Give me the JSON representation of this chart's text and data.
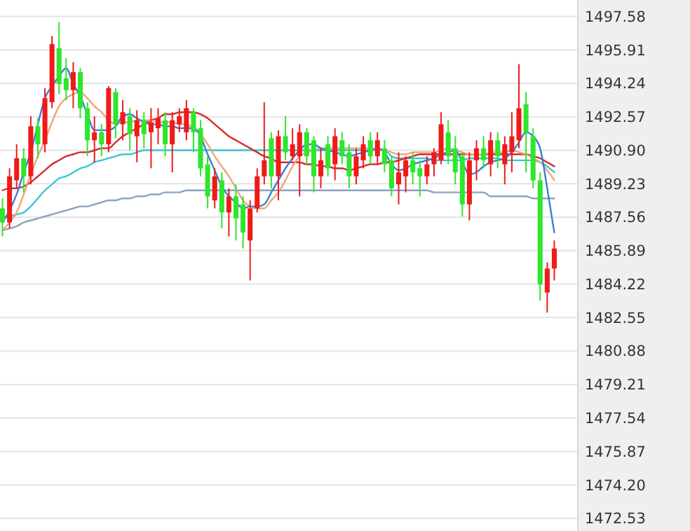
{
  "chart_data": {
    "type": "candlestick",
    "categories": [
      null,
      null,
      null,
      null,
      null,
      null,
      null,
      null,
      null,
      null,
      null,
      null,
      null,
      null,
      null,
      null,
      null,
      null,
      null,
      null,
      null,
      null,
      null,
      null,
      null,
      null,
      null,
      null,
      null,
      null,
      null,
      null,
      null,
      null,
      null,
      null,
      null,
      null,
      null,
      null,
      null,
      null,
      null,
      null,
      null,
      null,
      null,
      null,
      null,
      null,
      null,
      null,
      null,
      null,
      null,
      null,
      null,
      null,
      null,
      null,
      null,
      null,
      null,
      null,
      null,
      null,
      null,
      null,
      null,
      null,
      null,
      null,
      null,
      null,
      null,
      null,
      null,
      null,
      null
    ],
    "ohlc": [
      [
        1488.0,
        1488.5,
        1486.6,
        1487.3
      ],
      [
        1487.3,
        1490.0,
        1487.0,
        1489.6
      ],
      [
        1489.4,
        1491.2,
        1489.0,
        1490.5
      ],
      [
        1490.5,
        1491.0,
        1488.8,
        1489.6
      ],
      [
        1489.6,
        1492.6,
        1489.2,
        1492.1
      ],
      [
        1492.1,
        1492.5,
        1490.5,
        1491.2
      ],
      [
        1491.2,
        1494.0,
        1490.8,
        1493.5
      ],
      [
        1493.3,
        1496.6,
        1493.0,
        1496.2
      ],
      [
        1496.0,
        1497.3,
        1493.7,
        1494.2
      ],
      [
        1494.5,
        1495.5,
        1493.4,
        1493.9
      ],
      [
        1493.9,
        1495.3,
        1493.0,
        1494.8
      ],
      [
        1494.8,
        1495.0,
        1492.5,
        1493.0
      ],
      [
        1493.0,
        1493.3,
        1490.6,
        1491.4
      ],
      [
        1491.4,
        1492.6,
        1490.3,
        1491.8
      ],
      [
        1491.8,
        1492.2,
        1490.6,
        1491.2
      ],
      [
        1491.2,
        1494.1,
        1490.8,
        1494.0
      ],
      [
        1493.8,
        1494.0,
        1491.5,
        1492.2
      ],
      [
        1492.2,
        1493.4,
        1491.4,
        1492.8
      ],
      [
        1492.6,
        1493.0,
        1490.9,
        1491.7
      ],
      [
        1491.6,
        1492.9,
        1490.3,
        1492.4
      ],
      [
        1492.4,
        1492.8,
        1491.0,
        1491.7
      ],
      [
        1491.8,
        1493.0,
        1490.0,
        1492.3
      ],
      [
        1492.0,
        1493.0,
        1491.2,
        1492.5
      ],
      [
        1492.4,
        1492.8,
        1490.6,
        1491.2
      ],
      [
        1491.2,
        1492.8,
        1489.8,
        1492.4
      ],
      [
        1492.2,
        1493.0,
        1491.8,
        1492.6
      ],
      [
        1491.8,
        1493.4,
        1491.4,
        1493.0
      ],
      [
        1492.8,
        1493.0,
        1490.8,
        1491.8
      ],
      [
        1492.0,
        1492.4,
        1489.6,
        1490.0
      ],
      [
        1490.2,
        1490.6,
        1488.0,
        1488.6
      ],
      [
        1488.4,
        1490.0,
        1488.0,
        1489.6
      ],
      [
        1489.4,
        1489.8,
        1487.0,
        1487.8
      ],
      [
        1487.8,
        1489.0,
        1486.6,
        1488.6
      ],
      [
        1488.6,
        1489.2,
        1486.4,
        1487.5
      ],
      [
        1488.2,
        1488.6,
        1486.0,
        1486.8
      ],
      [
        1486.4,
        1488.4,
        1484.4,
        1488.0
      ],
      [
        1488.0,
        1490.0,
        1487.8,
        1489.6
      ],
      [
        1489.6,
        1493.3,
        1489.2,
        1490.4
      ],
      [
        1491.5,
        1491.8,
        1489.0,
        1489.6
      ],
      [
        1489.6,
        1491.9,
        1488.4,
        1491.6
      ],
      [
        1491.6,
        1492.6,
        1490.4,
        1490.8
      ],
      [
        1490.6,
        1492.0,
        1490.4,
        1491.2
      ],
      [
        1490.6,
        1492.2,
        1488.6,
        1491.8
      ],
      [
        1491.8,
        1492.0,
        1490.2,
        1490.6
      ],
      [
        1491.4,
        1491.6,
        1488.8,
        1489.6
      ],
      [
        1489.6,
        1491.0,
        1489.0,
        1490.4
      ],
      [
        1491.2,
        1491.6,
        1489.6,
        1490.0
      ],
      [
        1490.2,
        1492.0,
        1489.4,
        1491.6
      ],
      [
        1491.4,
        1491.8,
        1490.2,
        1490.6
      ],
      [
        1490.8,
        1491.2,
        1489.0,
        1489.6
      ],
      [
        1489.6,
        1491.0,
        1489.2,
        1490.6
      ],
      [
        1490.4,
        1491.6,
        1490.0,
        1491.2
      ],
      [
        1491.4,
        1491.8,
        1490.2,
        1490.6
      ],
      [
        1490.6,
        1491.8,
        1490.2,
        1491.4
      ],
      [
        1491.0,
        1491.4,
        1489.8,
        1490.2
      ],
      [
        1490.4,
        1490.6,
        1488.6,
        1489.0
      ],
      [
        1489.2,
        1490.8,
        1488.2,
        1489.8
      ],
      [
        1489.6,
        1490.6,
        1488.8,
        1490.4
      ],
      [
        1490.4,
        1490.8,
        1489.2,
        1489.8
      ],
      [
        1490.0,
        1490.4,
        1488.6,
        1489.6
      ],
      [
        1489.6,
        1490.6,
        1489.2,
        1490.2
      ],
      [
        1490.2,
        1491.0,
        1489.6,
        1490.8
      ],
      [
        1490.4,
        1492.8,
        1490.2,
        1492.2
      ],
      [
        1491.8,
        1492.4,
        1490.2,
        1490.6
      ],
      [
        1491.0,
        1491.6,
        1489.2,
        1489.8
      ],
      [
        1490.6,
        1490.8,
        1487.6,
        1488.2
      ],
      [
        1488.2,
        1490.8,
        1487.4,
        1490.4
      ],
      [
        1490.4,
        1491.4,
        1489.4,
        1491.0
      ],
      [
        1491.0,
        1491.6,
        1490.0,
        1490.4
      ],
      [
        1490.2,
        1491.8,
        1489.6,
        1491.4
      ],
      [
        1491.4,
        1491.8,
        1490.0,
        1490.6
      ],
      [
        1490.2,
        1491.6,
        1489.2,
        1491.2
      ],
      [
        1490.8,
        1492.8,
        1489.8,
        1491.6
      ],
      [
        1491.4,
        1495.2,
        1491.0,
        1493.0
      ],
      [
        1493.2,
        1493.8,
        1489.8,
        1491.8
      ],
      [
        1491.6,
        1492.0,
        1489.0,
        1489.4
      ],
      [
        1489.4,
        1489.8,
        1483.4,
        1484.2
      ],
      [
        1483.8,
        1485.3,
        1482.8,
        1485.0
      ],
      [
        1485.0,
        1486.4,
        1484.4,
        1486.0
      ]
    ],
    "colors": [
      "#2ee62e",
      "#f01a1a",
      "#f01a1a",
      "#2ee62e",
      "#f01a1a",
      "#2ee62e",
      "#f01a1a",
      "#f01a1a",
      "#2ee62e",
      "#2ee62e",
      "#f01a1a",
      "#2ee62e",
      "#2ee62e",
      "#f01a1a",
      "#2ee62e",
      "#f01a1a",
      "#2ee62e",
      "#f01a1a",
      "#2ee62e",
      "#f01a1a",
      "#2ee62e",
      "#f01a1a",
      "#f01a1a",
      "#2ee62e",
      "#f01a1a",
      "#f01a1a",
      "#f01a1a",
      "#2ee62e",
      "#2ee62e",
      "#2ee62e",
      "#f01a1a",
      "#2ee62e",
      "#f01a1a",
      "#2ee62e",
      "#2ee62e",
      "#f01a1a",
      "#f01a1a",
      "#f01a1a",
      "#2ee62e",
      "#f01a1a",
      "#2ee62e",
      "#f01a1a",
      "#f01a1a",
      "#2ee62e",
      "#2ee62e",
      "#f01a1a",
      "#2ee62e",
      "#f01a1a",
      "#2ee62e",
      "#2ee62e",
      "#f01a1a",
      "#f01a1a",
      "#2ee62e",
      "#f01a1a",
      "#2ee62e",
      "#2ee62e",
      "#f01a1a",
      "#f01a1a",
      "#2ee62e",
      "#2ee62e",
      "#f01a1a",
      "#f01a1a",
      "#f01a1a",
      "#2ee62e",
      "#2ee62e",
      "#2ee62e",
      "#f01a1a",
      "#f01a1a",
      "#2ee62e",
      "#f01a1a",
      "#2ee62e",
      "#f01a1a",
      "#f01a1a",
      "#f01a1a",
      "#2ee62e",
      "#2ee62e",
      "#2ee62e",
      "#f01a1a",
      "#f01a1a"
    ],
    "series": [
      {
        "type": "line",
        "color": "#8aa2c4",
        "values": [
          1486.9,
          1487.0,
          1487.1,
          1487.3,
          1487.4,
          1487.5,
          1487.6,
          1487.7,
          1487.8,
          1487.9,
          1488.0,
          1488.1,
          1488.1,
          1488.2,
          1488.3,
          1488.4,
          1488.4,
          1488.5,
          1488.5,
          1488.6,
          1488.6,
          1488.7,
          1488.7,
          1488.8,
          1488.8,
          1488.8,
          1488.9,
          1488.9,
          1488.9,
          1488.9,
          1488.9,
          1488.9,
          1488.9,
          1488.9,
          1488.9,
          1488.9,
          1488.9,
          1488.9,
          1488.9,
          1488.9,
          1488.9,
          1488.9,
          1488.9,
          1488.9,
          1488.9,
          1488.9,
          1488.9,
          1488.9,
          1488.9,
          1488.9,
          1488.9,
          1488.9,
          1488.9,
          1488.9,
          1488.9,
          1488.9,
          1488.9,
          1488.9,
          1488.9,
          1488.9,
          1488.9,
          1488.8,
          1488.8,
          1488.8,
          1488.8,
          1488.8,
          1488.8,
          1488.8,
          1488.8,
          1488.6,
          1488.6,
          1488.6,
          1488.6,
          1488.6,
          1488.6,
          1488.5,
          1488.5,
          1488.5,
          1488.5
        ]
      },
      {
        "type": "line",
        "color": "#3cc4d4",
        "values": [
          1487.5,
          1487.6,
          1487.7,
          1487.8,
          1488.1,
          1488.5,
          1488.9,
          1489.2,
          1489.5,
          1489.6,
          1489.8,
          1490.0,
          1490.1,
          1490.3,
          1490.4,
          1490.5,
          1490.6,
          1490.7,
          1490.7,
          1490.8,
          1490.9,
          1490.9,
          1490.9,
          1490.9,
          1490.9,
          1490.9,
          1490.9,
          1490.9,
          1490.9,
          1490.9,
          1490.9,
          1490.9,
          1490.9,
          1490.9,
          1490.9,
          1490.9,
          1490.9,
          1490.9,
          1490.9,
          1490.9,
          1490.9,
          1490.9,
          1490.9,
          1490.9,
          1490.9,
          1490.9,
          1490.9,
          1490.9,
          1490.9,
          1490.9,
          1490.9,
          1490.9,
          1490.9,
          1490.9,
          1490.9,
          1490.6,
          1490.5,
          1490.5,
          1490.5,
          1490.5,
          1490.5,
          1490.4,
          1490.4,
          1490.4,
          1490.4,
          1490.4,
          1490.5,
          1490.5,
          1490.5,
          1490.5,
          1490.5,
          1490.4,
          1490.4,
          1490.4,
          1490.4,
          1490.4,
          1490.3,
          1490.1,
          1489.8
        ]
      },
      {
        "type": "line",
        "color": "#d42a2a",
        "values": [
          1488.9,
          1489.0,
          1489.0,
          1489.1,
          1489.3,
          1489.6,
          1489.9,
          1490.2,
          1490.4,
          1490.6,
          1490.7,
          1490.8,
          1490.8,
          1490.9,
          1491.0,
          1491.0,
          1491.3,
          1491.6,
          1491.8,
          1492.0,
          1492.2,
          1492.4,
          1492.5,
          1492.7,
          1492.7,
          1492.8,
          1492.8,
          1492.8,
          1492.7,
          1492.5,
          1492.2,
          1491.9,
          1491.6,
          1491.4,
          1491.2,
          1491.0,
          1490.8,
          1490.6,
          1490.5,
          1490.3,
          1490.3,
          1490.3,
          1490.3,
          1490.2,
          1490.2,
          1490.1,
          1490.1,
          1490.0,
          1490.0,
          1489.9,
          1490.0,
          1490.1,
          1490.2,
          1490.2,
          1490.3,
          1490.3,
          1490.4,
          1490.5,
          1490.6,
          1490.7,
          1490.7,
          1490.7,
          1490.7,
          1490.7,
          1490.7,
          1490.7,
          1490.7,
          1490.7,
          1490.7,
          1490.7,
          1490.7,
          1490.7,
          1490.7,
          1490.7,
          1490.7,
          1490.6,
          1490.5,
          1490.3,
          1490.1
        ]
      },
      {
        "type": "line",
        "color": "#f0a47a",
        "values": [
          1486.9,
          1487.3,
          1487.8,
          1488.7,
          1489.7,
          1490.6,
          1491.4,
          1492.3,
          1493.1,
          1493.5,
          1493.7,
          1493.8,
          1493.5,
          1493.1,
          1492.8,
          1492.4,
          1492.2,
          1492.3,
          1492.3,
          1492.4,
          1492.4,
          1492.4,
          1492.3,
          1492.3,
          1492.3,
          1492.2,
          1492.2,
          1492.0,
          1491.7,
          1491.2,
          1490.6,
          1490.1,
          1489.6,
          1489.0,
          1488.4,
          1488.1,
          1488.0,
          1488.0,
          1488.4,
          1488.8,
          1489.4,
          1490.1,
          1490.6,
          1490.8,
          1490.9,
          1491.0,
          1491.0,
          1491.0,
          1491.0,
          1491.0,
          1491.0,
          1491.0,
          1491.0,
          1490.9,
          1490.9,
          1490.8,
          1490.7,
          1490.7,
          1490.8,
          1490.8,
          1490.8,
          1490.8,
          1490.9,
          1491.0,
          1490.9,
          1490.8,
          1490.7,
          1490.7,
          1490.7,
          1490.8,
          1490.8,
          1490.8,
          1490.9,
          1490.8,
          1490.7,
          1490.5,
          1490.3,
          1489.9,
          1489.4
        ]
      },
      {
        "type": "line",
        "color": "#3b7fd6",
        "values": [
          1487.3,
          1487.9,
          1488.7,
          1489.8,
          1490.8,
          1492.2,
          1493.5,
          1494.1,
          1494.6,
          1495.0,
          1494.2,
          1493.6,
          1492.7,
          1491.9,
          1491.9,
          1491.9,
          1492.1,
          1492.6,
          1492.7,
          1492.5,
          1492.3,
          1492.2,
          1492.2,
          1492.1,
          1492.1,
          1492.0,
          1492.0,
          1492.0,
          1491.6,
          1490.7,
          1489.9,
          1489.1,
          1488.6,
          1488.3,
          1488.0,
          1488.1,
          1488.1,
          1488.2,
          1488.8,
          1489.4,
          1490.0,
          1490.5,
          1490.9,
          1491.2,
          1491.2,
          1491.0,
          1490.9,
          1490.8,
          1490.7,
          1490.6,
          1490.7,
          1490.8,
          1490.9,
          1491.0,
          1490.8,
          1490.2,
          1489.9,
          1490.0,
          1490.2,
          1490.3,
          1490.4,
          1490.5,
          1490.7,
          1490.8,
          1490.9,
          1490.3,
          1489.7,
          1489.8,
          1490.1,
          1490.3,
          1490.4,
          1490.5,
          1490.8,
          1491.3,
          1491.8,
          1491.6,
          1491.0,
          1489.0,
          1486.8
        ]
      }
    ],
    "ylim": [
      1471.9,
      1498.4
    ],
    "yticks": [
      1472.53,
      {
        "value": 1474.2,
        "label": "1474.20"
      },
      1475.87,
      1477.54,
      1479.21,
      1480.88,
      1482.55,
      1484.22,
      1485.89,
      1487.56,
      1489.23,
      {
        "value": 1490.9,
        "label": "1490.90"
      },
      1492.57,
      1494.24,
      1495.91,
      1497.58
    ],
    "grid": "y",
    "tick_labels": "y"
  }
}
